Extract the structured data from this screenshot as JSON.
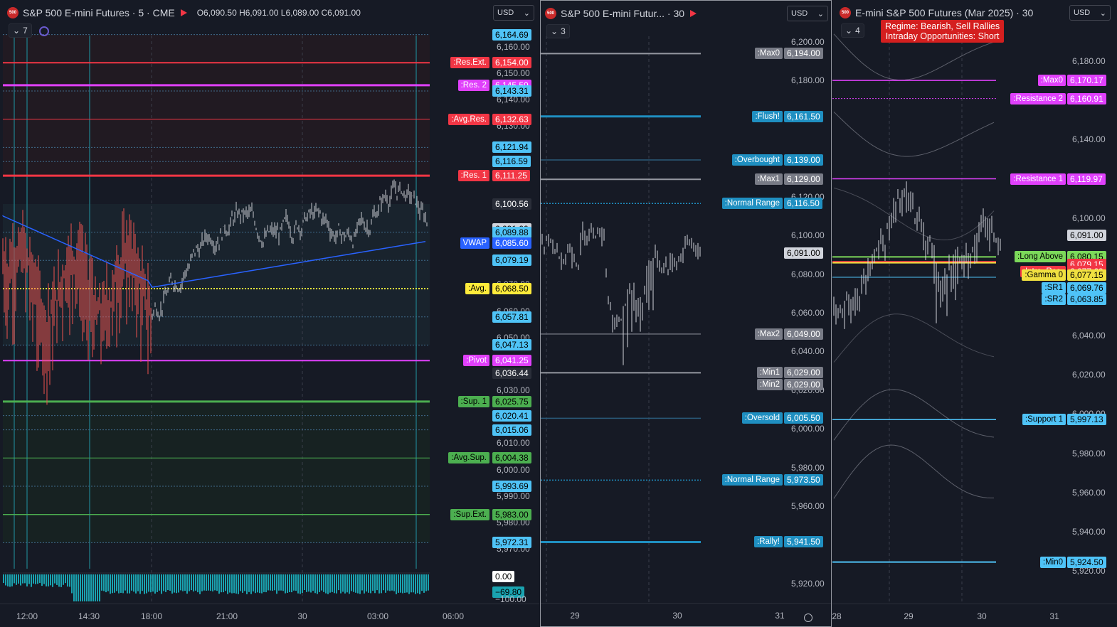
{
  "pane1": {
    "symbol": "S&P 500 E-mini Futures · 5 · CME",
    "logo_text": "500",
    "ohlc": "O6,090.50 H6,091.00 L6,089.00 C6,091.00",
    "counter": "7",
    "currency": "USD",
    "price_ticks": [
      "6,160.00",
      "6,150.00",
      "6,140.00",
      "6,130.00",
      "6,070.00",
      "6,060.00",
      "6,050.00",
      "6,030.00",
      "6,010.00",
      "6,000.00",
      "5,990.00",
      "5,980.00",
      "5,970.00"
    ],
    "tags": [
      {
        "label": "",
        "value": "6,164.69"
      },
      {
        "label": ":Res.Ext.",
        "value": "6,154.00"
      },
      {
        "label": ":Res. 2",
        "value": "6,145.50"
      },
      {
        "label": "",
        "value": "6,143.31"
      },
      {
        "label": ":Avg.Res.",
        "value": "6,132.63"
      },
      {
        "label": "",
        "value": "6,121.94"
      },
      {
        "label": "",
        "value": "6,116.59"
      },
      {
        "label": ":Res. 1",
        "value": "6,111.25"
      },
      {
        "label": "",
        "value": "6,100.56"
      },
      {
        "label": "",
        "value": "6,091.00"
      },
      {
        "label": "",
        "value": "6,089.88"
      },
      {
        "label": "VWAP",
        "value": "6,085.60"
      },
      {
        "label": "",
        "value": "6,079.19"
      },
      {
        "label": ":Avg.",
        "value": "6,068.50"
      },
      {
        "label": "",
        "value": "6,057.81"
      },
      {
        "label": "",
        "value": "6,047.13"
      },
      {
        "label": ":Pivot",
        "value": "6,041.25"
      },
      {
        "label": "",
        "value": "6,036.44"
      },
      {
        "label": ":Sup. 1",
        "value": "6,025.75"
      },
      {
        "label": "",
        "value": "6,020.41"
      },
      {
        "label": "",
        "value": "6,015.06"
      },
      {
        "label": ":Avg.Sup.",
        "value": "6,004.38"
      },
      {
        "label": "",
        "value": "5,993.69"
      },
      {
        "label": ":Sup.Ext.",
        "value": "5,983.00"
      },
      {
        "label": "",
        "value": "5,972.31"
      }
    ],
    "osc_ticks": [
      "0.00",
      "−69.80",
      "−100.00"
    ],
    "time_labels": [
      "12:00",
      "14:30",
      "18:00",
      "21:00",
      "30",
      "03:00",
      "06:00"
    ]
  },
  "pane2": {
    "symbol": "S&P 500 E-mini Futur... · 30",
    "logo_text": "500",
    "counter": "3",
    "currency": "USD",
    "price_ticks": [
      "6,200.00",
      "6,180.00",
      "6,120.00",
      "6,100.00",
      "6,080.00",
      "6,060.00",
      "6,040.00",
      "6,020.00",
      "6,000.00",
      "5,980.00",
      "5,960.00",
      "5,920.00"
    ],
    "current_price": "6,091.00",
    "tags": [
      {
        "label": ":Max0",
        "value": "6,194.00"
      },
      {
        "label": ":Flush!",
        "value": "6,161.50"
      },
      {
        "label": ":Overbought",
        "value": "6,139.00"
      },
      {
        "label": ":Max1",
        "value": "6,129.00"
      },
      {
        "label": ":Normal Range",
        "value": "6,116.50"
      },
      {
        "label": ":Max2",
        "value": "6,049.00"
      },
      {
        "label": ":Min1",
        "value": "6,029.00"
      },
      {
        "label": ":Min2",
        "value": "6,029.00"
      },
      {
        "label": ":Oversold",
        "value": "6,005.50"
      },
      {
        "label": ":Normal Range",
        "value": "5,973.50"
      },
      {
        "label": ":Rally!",
        "value": "5,941.50"
      }
    ],
    "time_labels": [
      "29",
      "30",
      "31"
    ]
  },
  "pane3": {
    "symbol": "E-mini S&P 500 Futures (Mar 2025) · 30",
    "logo_text": "500",
    "counter": "4",
    "currency": "USD",
    "regime_line1": "Regime: Bearish, Sell Rallies",
    "regime_line2": "Intraday Opportunities: Short",
    "price_ticks": [
      "6,180.00",
      "6,140.00",
      "6,100.00",
      "6,040.00",
      "6,020.00",
      "6,000.00",
      "5,980.00",
      "5,960.00",
      "5,940.00",
      "5,920.00"
    ],
    "current_price": "6,091.00",
    "tags": [
      {
        "label": ":Max0",
        "value": "6,170.17"
      },
      {
        "label": ":Resistance 2",
        "value": "6,160.91"
      },
      {
        "label": ":Resistance 1",
        "value": "6,119.97"
      },
      {
        "label": ":Long Above",
        "value": "6,080.15"
      },
      {
        "label": "",
        "value": "6,079.15"
      },
      {
        "label": ":Intra. Res.",
        "value": "6,077.69"
      },
      {
        "label": ":Gamma 0",
        "value": "6,077.15"
      },
      {
        "label": ":SR1",
        "value": "6,069.76"
      },
      {
        "label": ":SR2",
        "value": "6,063.85"
      },
      {
        "label": ":Support 1",
        "value": "5,997.13"
      },
      {
        "label": ":Min0",
        "value": "5,924.50"
      }
    ],
    "time_labels": [
      "28",
      "29",
      "30",
      "31"
    ]
  },
  "colors": {
    "bg": "#161a25",
    "red": "#f23645",
    "magenta": "#e040fb",
    "cyan": "#4fc3f7",
    "blue": "#2962ff",
    "yellow": "#ffeb3b",
    "green": "#4caf50",
    "gray": "#5d606b",
    "teal": "#1f8fc1"
  }
}
